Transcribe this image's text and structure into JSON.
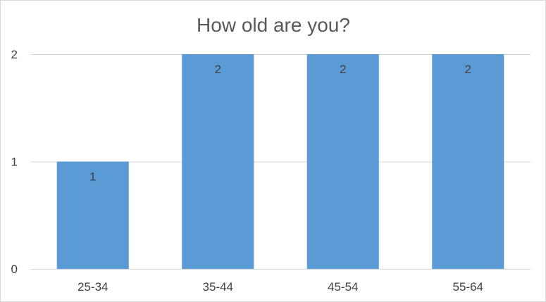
{
  "chart_data": {
    "type": "bar",
    "title": "How old are you?",
    "categories": [
      "25-34",
      "35-44",
      "45-54",
      "55-64"
    ],
    "values": [
      1,
      2,
      2,
      2
    ],
    "data_labels": [
      "1",
      "2",
      "2",
      "2"
    ],
    "ylim": [
      0,
      2
    ],
    "yticks": [
      0,
      1,
      2
    ],
    "ytick_labels": [
      "0",
      "1",
      "2"
    ],
    "grid": true,
    "legend": "none",
    "bar_color": "#5b9bd5",
    "grid_color": "#d9d9d9"
  }
}
